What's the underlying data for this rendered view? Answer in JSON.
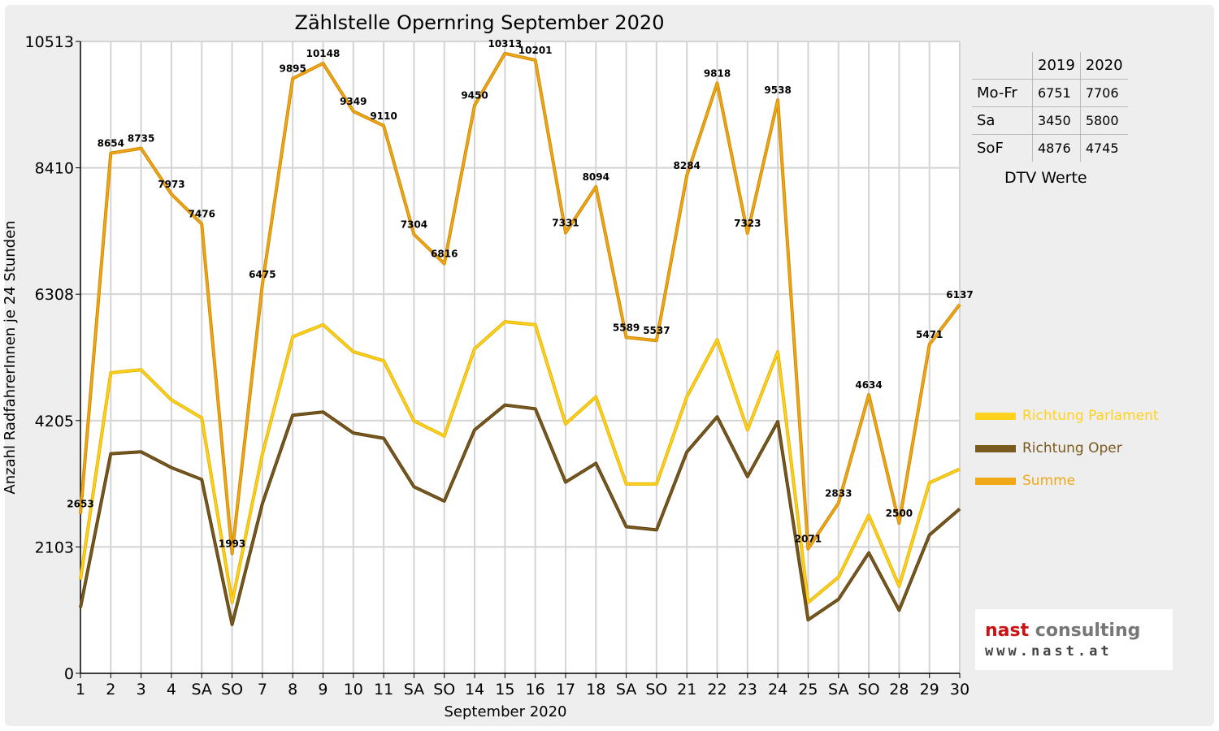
{
  "chart_data": {
    "type": "line",
    "title": "Zählstelle Opernring September 2020",
    "xlabel": "September 2020",
    "ylabel": "Anzahl RadfahrerInnen je 24 Stunden",
    "ylim": [
      0,
      10513
    ],
    "yticks": [
      0,
      2103,
      4205,
      6308,
      8410,
      10513
    ],
    "categories": [
      "1",
      "2",
      "3",
      "4",
      "SA",
      "SO",
      "7",
      "8",
      "9",
      "10",
      "11",
      "SA",
      "SO",
      "14",
      "15",
      "16",
      "17",
      "18",
      "SA",
      "SO",
      "21",
      "22",
      "23",
      "24",
      "25",
      "SA",
      "SO",
      "28",
      "29",
      "30"
    ],
    "weekend_color": "#ff0000",
    "weekend_categories": [
      "SO"
    ],
    "grid": true,
    "legend_position": "right",
    "series": [
      {
        "name": "Richtung Parlament",
        "color": "#ffd21f",
        "values": [
          1560,
          5000,
          5050,
          4550,
          4250,
          1180,
          3650,
          5600,
          5800,
          5350,
          5200,
          4200,
          3950,
          5400,
          5850,
          5800,
          4150,
          4600,
          3150,
          3150,
          4600,
          5550,
          4050,
          5350,
          1180,
          1600,
          2630,
          1450,
          3170,
          3400
        ]
      },
      {
        "name": "Richtung Oper",
        "color": "#7a5a1e",
        "values": [
          1093,
          3654,
          3685,
          3423,
          3226,
          813,
          2825,
          4295,
          4348,
          3999,
          3910,
          3104,
          2866,
          4050,
          4463,
          4401,
          3181,
          3494,
          2439,
          2387,
          3684,
          4268,
          3273,
          4188,
          891,
          1233,
          2004,
          1050,
          2301,
          2737
        ]
      },
      {
        "name": "Summe",
        "color": "#f0a818",
        "values": [
          2653,
          8654,
          8735,
          7973,
          7476,
          1993,
          6475,
          9895,
          10148,
          9349,
          9110,
          7304,
          6816,
          9450,
          10313,
          10201,
          7331,
          8094,
          5589,
          5537,
          8284,
          9818,
          7323,
          9538,
          2071,
          2833,
          4634,
          2500,
          5471,
          6137
        ],
        "data_labels": [
          "2653",
          "8654",
          "8735",
          "7973",
          "7476",
          "1993",
          "6475",
          "9895",
          "10148",
          "9349",
          "9110",
          "7304",
          "6816",
          "9450",
          "10313",
          "10201",
          "7331",
          "8094",
          "5589",
          "5537",
          "8284",
          "9818",
          "7323",
          "9538",
          "2071",
          "2833",
          "4634",
          "2500",
          "5471",
          "6137"
        ]
      }
    ]
  },
  "dtv_table": {
    "headers": [
      "",
      "2019",
      "2020"
    ],
    "rows": [
      {
        "label": "Mo-Fr",
        "v2019": "6751",
        "v2020": "7706"
      },
      {
        "label": "Sa",
        "v2019": "3450",
        "v2020": "5800"
      },
      {
        "label": "SoF",
        "v2019": "4876",
        "v2020": "4745"
      }
    ],
    "caption": "DTV Werte"
  },
  "logo": {
    "word1": "nast",
    "word2": "consulting",
    "url": "www.nast.at",
    "color_primary": "#c81414",
    "color_secondary": "#777777"
  }
}
